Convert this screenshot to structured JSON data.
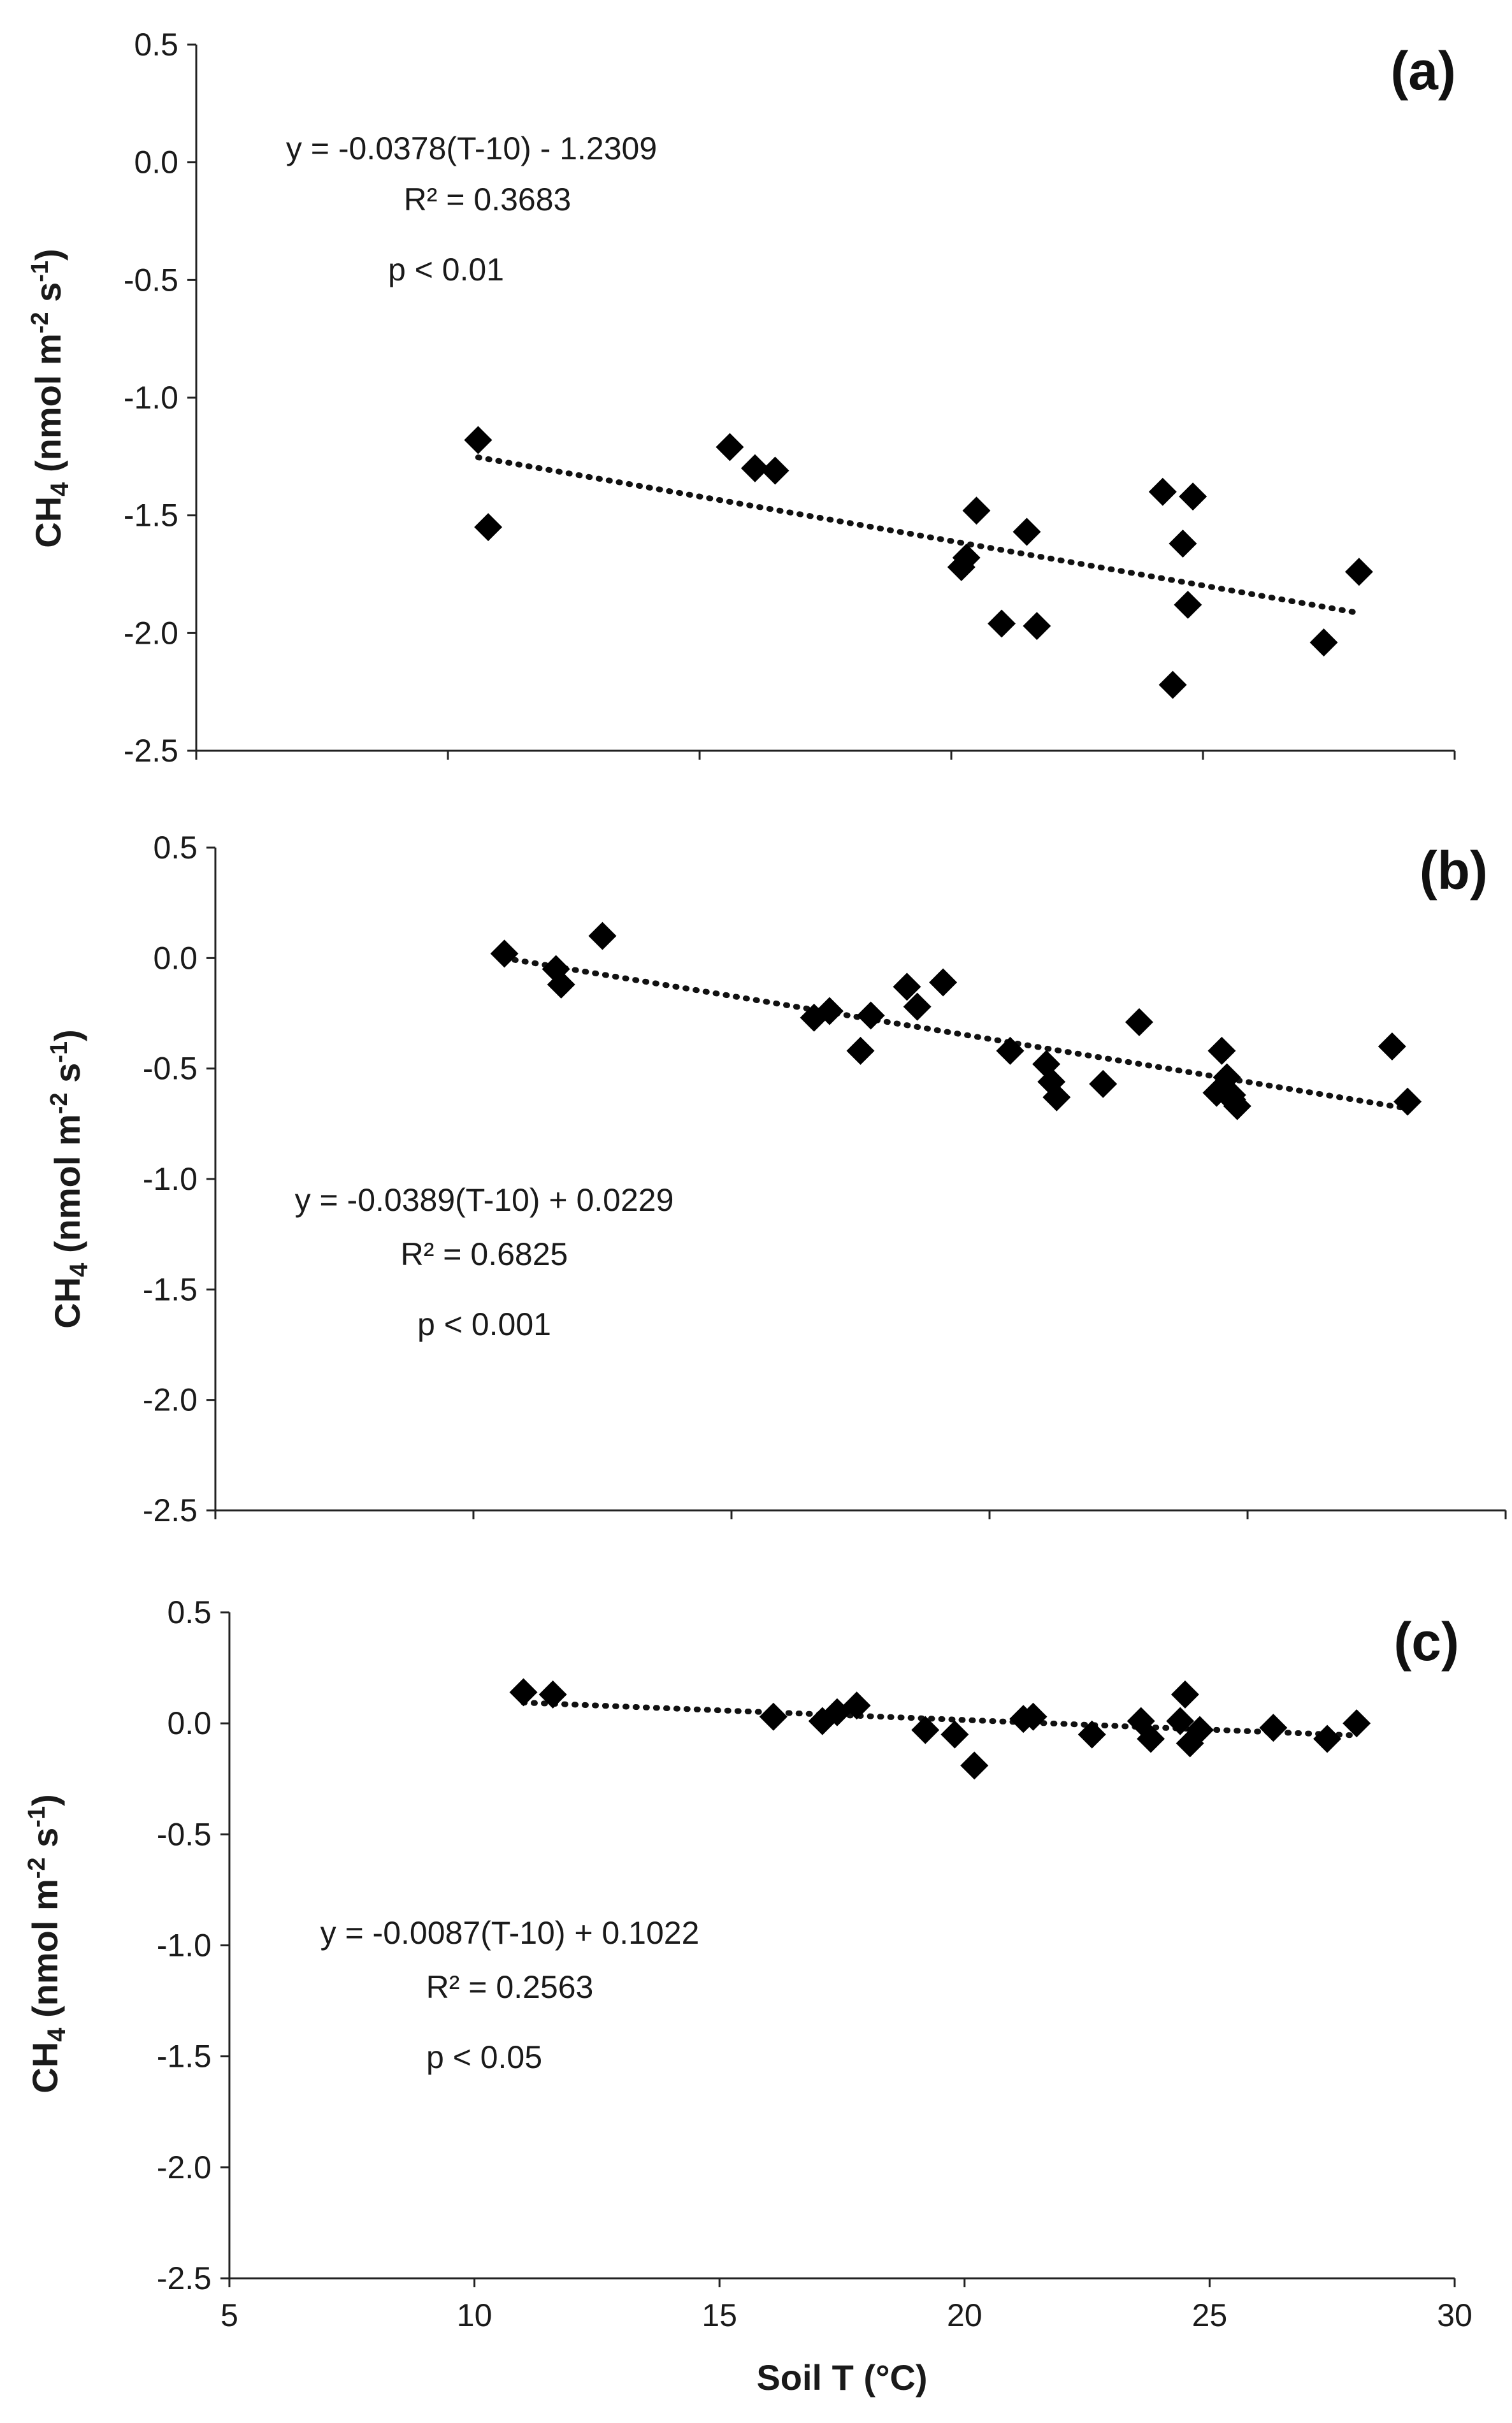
{
  "chart_data": [
    {
      "type": "scatter",
      "panel": "(a)",
      "ylabel_main": "CH",
      "ylabel_sub": "4",
      "ylabel_rest": " (nmol m",
      "ylabel_sup1": "-2",
      "ylabel_mid": " s",
      "ylabel_sup2": "-1",
      "ylabel_end": ")",
      "xlim": [
        5,
        30
      ],
      "ylim": [
        -2.5,
        0.5
      ],
      "yticks": [
        "0.5",
        "0.0",
        "-0.5",
        "-1.0",
        "-1.5",
        "-2.0",
        "-2.5"
      ],
      "equation": "y = -0.0378(T-10) - 1.2309",
      "r2": "R² = 0.3683",
      "pvalue": "p < 0.01",
      "trend": {
        "slope": -0.0378,
        "intercept": -1.2309,
        "x_range": [
          10.6,
          28.1
        ]
      },
      "points": [
        [
          10.6,
          -1.18
        ],
        [
          10.8,
          -1.55
        ],
        [
          15.6,
          -1.21
        ],
        [
          16.1,
          -1.3
        ],
        [
          16.5,
          -1.31
        ],
        [
          20.2,
          -1.72
        ],
        [
          20.3,
          -1.68
        ],
        [
          20.5,
          -1.48
        ],
        [
          21.0,
          -1.96
        ],
        [
          21.5,
          -1.57
        ],
        [
          21.7,
          -1.97
        ],
        [
          24.2,
          -1.4
        ],
        [
          24.4,
          -2.22
        ],
        [
          24.6,
          -1.62
        ],
        [
          24.7,
          -1.88
        ],
        [
          24.8,
          -1.42
        ],
        [
          27.4,
          -2.04
        ],
        [
          28.1,
          -1.74
        ]
      ]
    },
    {
      "type": "scatter",
      "panel": "(b)",
      "ylabel_main": "CH",
      "ylabel_sub": "4",
      "ylabel_rest": " (nmol m",
      "ylabel_sup1": "-2",
      "ylabel_mid": " s",
      "ylabel_sup2": "-1",
      "ylabel_end": ")",
      "xlim": [
        5,
        30
      ],
      "ylim": [
        -2.5,
        0.5
      ],
      "yticks": [
        "0.5",
        "0.0",
        "-0.5",
        "-1.0",
        "-1.5",
        "-2.0",
        "-2.5"
      ],
      "equation": "y = -0.0389(T-10) + 0.0229",
      "r2": "R² = 0.6825",
      "pvalue": "p < 0.001",
      "trend": {
        "slope": -0.0389,
        "intercept": 0.0229,
        "x_range": [
          10.6,
          28.1
        ]
      },
      "points": [
        [
          10.6,
          0.02
        ],
        [
          11.6,
          -0.05
        ],
        [
          11.7,
          -0.12
        ],
        [
          12.5,
          0.1
        ],
        [
          16.6,
          -0.27
        ],
        [
          16.9,
          -0.24
        ],
        [
          17.5,
          -0.42
        ],
        [
          17.7,
          -0.26
        ],
        [
          18.4,
          -0.13
        ],
        [
          18.6,
          -0.22
        ],
        [
          19.1,
          -0.11
        ],
        [
          20.4,
          -0.42
        ],
        [
          21.1,
          -0.48
        ],
        [
          21.2,
          -0.56
        ],
        [
          21.3,
          -0.63
        ],
        [
          22.2,
          -0.57
        ],
        [
          22.9,
          -0.29
        ],
        [
          24.4,
          -0.61
        ],
        [
          24.5,
          -0.42
        ],
        [
          24.6,
          -0.54
        ],
        [
          24.7,
          -0.64
        ],
        [
          24.8,
          -0.67
        ],
        [
          24.7,
          -0.62
        ],
        [
          27.8,
          -0.4
        ],
        [
          28.1,
          -0.65
        ]
      ]
    },
    {
      "type": "scatter",
      "panel": "(c)",
      "ylabel_main": "CH",
      "ylabel_sub": "4",
      "ylabel_rest": " (nmol m",
      "ylabel_sup1": "-2",
      "ylabel_mid": " s",
      "ylabel_sup2": "-1",
      "ylabel_end": ")",
      "xlabel": "Soil T (°C)",
      "xlim": [
        5,
        30
      ],
      "ylim": [
        -2.5,
        0.5
      ],
      "xticks": [
        "5",
        "10",
        "15",
        "20",
        "25",
        "30"
      ],
      "yticks": [
        "0.5",
        "0.0",
        "-0.5",
        "-1.0",
        "-1.5",
        "-2.0",
        "-2.5"
      ],
      "equation": "y = -0.0087(T-10) + 0.1022",
      "r2": "R² = 0.2563",
      "pvalue": "p < 0.05",
      "trend": {
        "slope": -0.0087,
        "intercept": 0.1022,
        "x_range": [
          11.0,
          28.0
        ]
      },
      "points": [
        [
          11.0,
          0.14
        ],
        [
          11.6,
          0.13
        ],
        [
          16.1,
          0.03
        ],
        [
          17.1,
          0.01
        ],
        [
          17.4,
          0.05
        ],
        [
          17.8,
          0.08
        ],
        [
          19.2,
          -0.03
        ],
        [
          19.8,
          -0.05
        ],
        [
          20.2,
          -0.19
        ],
        [
          21.2,
          0.02
        ],
        [
          21.4,
          0.03
        ],
        [
          22.6,
          -0.05
        ],
        [
          23.6,
          0.01
        ],
        [
          23.8,
          -0.07
        ],
        [
          24.4,
          0.01
        ],
        [
          24.5,
          0.13
        ],
        [
          24.6,
          -0.09
        ],
        [
          24.8,
          -0.03
        ],
        [
          26.3,
          -0.02
        ],
        [
          27.4,
          -0.07
        ],
        [
          28.0,
          0.0
        ]
      ]
    }
  ]
}
